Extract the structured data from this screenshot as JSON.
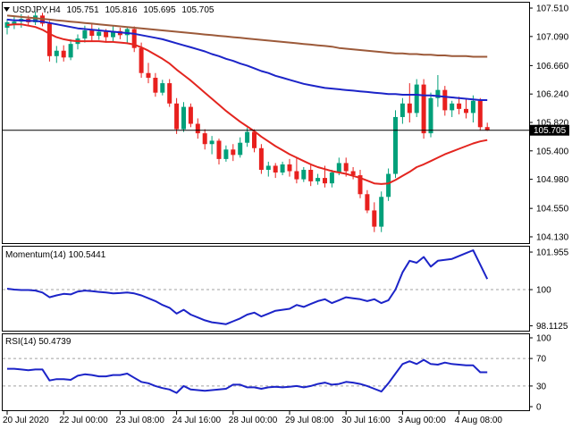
{
  "chart_data": [
    {
      "type": "candlestick",
      "header": {
        "symbol": "USDJPY,H4",
        "open": "105.751",
        "high": "105.816",
        "low": "105.695",
        "close": "105.705"
      },
      "current_price_label": "105.705",
      "y_ticks": [
        "107.510",
        "107.090",
        "106.660",
        "106.240",
        "105.820",
        "105.400",
        "104.980",
        "104.550",
        "104.130"
      ],
      "ylim": [
        104.09,
        107.55
      ],
      "current_price": 105.705,
      "colors": {
        "bull": "#00a07a",
        "bear": "#e8201e",
        "ma_fast": "#e3251f",
        "ma_mid": "#1c24c8",
        "ma_slow": "#9c5a3a"
      },
      "candles": [
        {
          "o": 107.22,
          "h": 107.35,
          "l": 107.12,
          "c": 107.3
        },
        {
          "o": 107.28,
          "h": 107.38,
          "l": 107.2,
          "c": 107.31
        },
        {
          "o": 107.31,
          "h": 107.42,
          "l": 107.22,
          "c": 107.35
        },
        {
          "o": 107.35,
          "h": 107.4,
          "l": 107.24,
          "c": 107.3
        },
        {
          "o": 107.3,
          "h": 107.46,
          "l": 107.26,
          "c": 107.4
        },
        {
          "o": 107.4,
          "h": 107.44,
          "l": 107.24,
          "c": 107.28
        },
        {
          "o": 107.28,
          "h": 107.32,
          "l": 106.72,
          "c": 106.8
        },
        {
          "o": 106.8,
          "h": 106.95,
          "l": 106.7,
          "c": 106.88
        },
        {
          "o": 106.88,
          "h": 106.96,
          "l": 106.72,
          "c": 106.78
        },
        {
          "o": 106.78,
          "h": 107.05,
          "l": 106.74,
          "c": 106.98
        },
        {
          "o": 106.98,
          "h": 107.12,
          "l": 106.9,
          "c": 107.06
        },
        {
          "o": 107.06,
          "h": 107.25,
          "l": 107.0,
          "c": 107.18
        },
        {
          "o": 107.18,
          "h": 107.28,
          "l": 107.02,
          "c": 107.1
        },
        {
          "o": 107.1,
          "h": 107.22,
          "l": 107.04,
          "c": 107.16
        },
        {
          "o": 107.16,
          "h": 107.2,
          "l": 107.0,
          "c": 107.08
        },
        {
          "o": 107.08,
          "h": 107.24,
          "l": 107.02,
          "c": 107.17
        },
        {
          "o": 107.17,
          "h": 107.22,
          "l": 107.05,
          "c": 107.11
        },
        {
          "o": 107.11,
          "h": 107.22,
          "l": 106.98,
          "c": 107.2
        },
        {
          "o": 107.2,
          "h": 107.24,
          "l": 106.86,
          "c": 106.92
        },
        {
          "o": 106.92,
          "h": 107.0,
          "l": 106.48,
          "c": 106.55
        },
        {
          "o": 106.55,
          "h": 106.7,
          "l": 106.4,
          "c": 106.48
        },
        {
          "o": 106.48,
          "h": 106.55,
          "l": 106.2,
          "c": 106.26
        },
        {
          "o": 106.26,
          "h": 106.45,
          "l": 106.22,
          "c": 106.4
        },
        {
          "o": 106.4,
          "h": 106.46,
          "l": 106.05,
          "c": 106.1
        },
        {
          "o": 106.1,
          "h": 106.18,
          "l": 105.65,
          "c": 105.72
        },
        {
          "o": 105.72,
          "h": 106.12,
          "l": 105.68,
          "c": 106.05
        },
        {
          "o": 106.05,
          "h": 106.1,
          "l": 105.75,
          "c": 105.8
        },
        {
          "o": 105.8,
          "h": 105.88,
          "l": 105.58,
          "c": 105.66
        },
        {
          "o": 105.66,
          "h": 105.72,
          "l": 105.42,
          "c": 105.5
        },
        {
          "o": 105.5,
          "h": 105.62,
          "l": 105.35,
          "c": 105.55
        },
        {
          "o": 105.55,
          "h": 105.58,
          "l": 105.2,
          "c": 105.28
        },
        {
          "o": 105.28,
          "h": 105.48,
          "l": 105.24,
          "c": 105.42
        },
        {
          "o": 105.42,
          "h": 105.5,
          "l": 105.25,
          "c": 105.34
        },
        {
          "o": 105.34,
          "h": 105.6,
          "l": 105.3,
          "c": 105.52
        },
        {
          "o": 105.52,
          "h": 105.74,
          "l": 105.46,
          "c": 105.68
        },
        {
          "o": 105.68,
          "h": 105.72,
          "l": 105.38,
          "c": 105.44
        },
        {
          "o": 105.44,
          "h": 105.5,
          "l": 105.06,
          "c": 105.12
        },
        {
          "o": 105.12,
          "h": 105.24,
          "l": 105.02,
          "c": 105.18
        },
        {
          "o": 105.18,
          "h": 105.22,
          "l": 105.0,
          "c": 105.08
        },
        {
          "o": 105.08,
          "h": 105.24,
          "l": 105.04,
          "c": 105.2
        },
        {
          "o": 105.2,
          "h": 105.28,
          "l": 105.02,
          "c": 105.1
        },
        {
          "o": 105.1,
          "h": 105.3,
          "l": 104.92,
          "c": 104.98
        },
        {
          "o": 104.98,
          "h": 105.16,
          "l": 104.94,
          "c": 105.12
        },
        {
          "o": 105.12,
          "h": 105.2,
          "l": 104.88,
          "c": 104.95
        },
        {
          "o": 104.95,
          "h": 105.06,
          "l": 104.9,
          "c": 105.0
        },
        {
          "o": 105.0,
          "h": 105.18,
          "l": 104.86,
          "c": 104.92
        },
        {
          "o": 104.92,
          "h": 105.12,
          "l": 104.86,
          "c": 105.08
        },
        {
          "o": 105.08,
          "h": 105.3,
          "l": 105.04,
          "c": 105.22
        },
        {
          "o": 105.22,
          "h": 105.3,
          "l": 105.02,
          "c": 105.1
        },
        {
          "o": 105.1,
          "h": 105.16,
          "l": 104.98,
          "c": 105.04
        },
        {
          "o": 105.04,
          "h": 105.12,
          "l": 104.7,
          "c": 104.76
        },
        {
          "o": 104.76,
          "h": 104.82,
          "l": 104.48,
          "c": 104.52
        },
        {
          "o": 104.52,
          "h": 104.64,
          "l": 104.2,
          "c": 104.28
        },
        {
          "o": 104.28,
          "h": 104.8,
          "l": 104.2,
          "c": 104.72
        },
        {
          "o": 104.72,
          "h": 105.14,
          "l": 104.66,
          "c": 105.06
        },
        {
          "o": 105.06,
          "h": 106.0,
          "l": 105.0,
          "c": 105.9
        },
        {
          "o": 105.9,
          "h": 106.18,
          "l": 105.8,
          "c": 106.1
        },
        {
          "o": 106.1,
          "h": 106.4,
          "l": 105.82,
          "c": 105.96
        },
        {
          "o": 105.96,
          "h": 106.46,
          "l": 105.9,
          "c": 106.38
        },
        {
          "o": 106.38,
          "h": 106.46,
          "l": 105.58,
          "c": 105.66
        },
        {
          "o": 105.66,
          "h": 106.26,
          "l": 105.6,
          "c": 106.18
        },
        {
          "o": 106.18,
          "h": 106.52,
          "l": 106.05,
          "c": 106.3
        },
        {
          "o": 106.3,
          "h": 106.36,
          "l": 105.92,
          "c": 106.0
        },
        {
          "o": 106.0,
          "h": 106.14,
          "l": 105.9,
          "c": 106.1
        },
        {
          "o": 106.1,
          "h": 106.2,
          "l": 105.94,
          "c": 106.02
        },
        {
          "o": 106.02,
          "h": 106.16,
          "l": 105.88,
          "c": 105.96
        },
        {
          "o": 105.96,
          "h": 106.22,
          "l": 105.82,
          "c": 106.14
        },
        {
          "o": 106.14,
          "h": 106.18,
          "l": 105.7,
          "c": 105.75
        },
        {
          "o": 105.751,
          "h": 105.816,
          "l": 105.695,
          "c": 105.705
        }
      ],
      "ma_fast": [
        107.26,
        107.27,
        107.27,
        107.25,
        107.23,
        107.19,
        107.13,
        107.08,
        107.05,
        107.03,
        107.02,
        107.02,
        107.02,
        107.02,
        107.01,
        107.01,
        107.0,
        106.99,
        106.97,
        106.93,
        106.88,
        106.82,
        106.76,
        106.69,
        106.6,
        106.52,
        106.44,
        106.35,
        106.26,
        106.17,
        106.08,
        105.99,
        105.91,
        105.83,
        105.76,
        105.69,
        105.61,
        105.54,
        105.47,
        105.41,
        105.35,
        105.3,
        105.25,
        105.2,
        105.16,
        105.13,
        105.1,
        105.08,
        105.06,
        105.03,
        105.0,
        104.96,
        104.92,
        104.91,
        104.92,
        104.97,
        105.03,
        105.09,
        105.16,
        105.2,
        105.25,
        105.3,
        105.35,
        105.39,
        105.43,
        105.47,
        105.51,
        105.54,
        105.56
      ],
      "ma_mid": [
        107.34,
        107.33,
        107.33,
        107.32,
        107.32,
        107.31,
        107.29,
        107.27,
        107.25,
        107.23,
        107.21,
        107.2,
        107.19,
        107.18,
        107.17,
        107.16,
        107.15,
        107.14,
        107.13,
        107.11,
        107.09,
        107.07,
        107.05,
        107.02,
        106.99,
        106.96,
        106.93,
        106.9,
        106.87,
        106.83,
        106.8,
        106.76,
        106.73,
        106.69,
        106.66,
        106.62,
        106.58,
        106.55,
        106.51,
        106.48,
        106.45,
        106.42,
        106.39,
        106.37,
        106.35,
        106.33,
        106.32,
        106.31,
        106.3,
        106.29,
        106.28,
        106.27,
        106.26,
        106.25,
        106.24,
        106.24,
        106.23,
        106.23,
        106.23,
        106.22,
        106.22,
        106.21,
        106.2,
        106.19,
        106.18,
        106.17,
        106.16,
        106.15,
        106.15
      ],
      "ma_slow": [
        107.4,
        107.39,
        107.38,
        107.37,
        107.36,
        107.35,
        107.34,
        107.33,
        107.32,
        107.31,
        107.3,
        107.29,
        107.28,
        107.27,
        107.26,
        107.25,
        107.24,
        107.23,
        107.22,
        107.21,
        107.2,
        107.19,
        107.18,
        107.17,
        107.16,
        107.15,
        107.14,
        107.13,
        107.12,
        107.11,
        107.1,
        107.09,
        107.08,
        107.07,
        107.06,
        107.05,
        107.04,
        107.03,
        107.02,
        107.01,
        107.0,
        106.99,
        106.98,
        106.97,
        106.96,
        106.95,
        106.94,
        106.92,
        106.91,
        106.9,
        106.89,
        106.88,
        106.87,
        106.86,
        106.85,
        106.84,
        106.84,
        106.83,
        106.83,
        106.82,
        106.82,
        106.81,
        106.81,
        106.8,
        106.8,
        106.8,
        106.79,
        106.79,
        106.79
      ],
      "x_ticks": [
        {
          "label": "20 Jul 2020",
          "index": 0
        },
        {
          "label": "22 Jul 00:00",
          "index": 8
        },
        {
          "label": "23 Jul 08:00",
          "index": 16
        },
        {
          "label": "24 Jul 16:00",
          "index": 24
        },
        {
          "label": "28 Jul 00:00",
          "index": 32
        },
        {
          "label": "29 Jul 08:00",
          "index": 40
        },
        {
          "label": "30 Jul 16:00",
          "index": 48
        },
        {
          "label": "3 Aug 00:00",
          "index": 56
        },
        {
          "label": "4 Aug 08:00",
          "index": 64
        }
      ]
    },
    {
      "type": "line",
      "title": "Momentum(14) 100.5441",
      "y_ticks": [
        "101.955",
        "100",
        "98.1125"
      ],
      "ylim": [
        98.0,
        102.05
      ],
      "reference": 100,
      "color": "#1c24c8",
      "values": [
        100.05,
        100.0,
        99.98,
        99.98,
        99.95,
        99.85,
        99.6,
        99.7,
        99.78,
        99.75,
        99.9,
        99.95,
        99.92,
        99.88,
        99.85,
        99.8,
        99.82,
        99.85,
        99.8,
        99.7,
        99.55,
        99.4,
        99.2,
        99.05,
        98.75,
        98.95,
        98.7,
        98.55,
        98.4,
        98.3,
        98.25,
        98.2,
        98.35,
        98.5,
        98.7,
        98.8,
        98.6,
        98.75,
        98.9,
        98.95,
        99.0,
        99.2,
        99.1,
        99.25,
        99.4,
        99.5,
        99.3,
        99.45,
        99.6,
        99.55,
        99.5,
        99.4,
        99.5,
        99.3,
        99.45,
        100.0,
        100.9,
        101.5,
        101.4,
        101.7,
        101.2,
        101.5,
        101.55,
        101.6,
        101.75,
        101.9,
        102.05,
        101.3,
        100.55
      ]
    },
    {
      "type": "line",
      "title": "RSI(14) 50.4739",
      "y_ticks": [
        "100",
        "70",
        "30",
        "0"
      ],
      "ylim": [
        0,
        100
      ],
      "levels": [
        70,
        30
      ],
      "color": "#1c24c8",
      "values": [
        55,
        55,
        54,
        53,
        54,
        54,
        38,
        40,
        40,
        39,
        45,
        47,
        46,
        44,
        44,
        46,
        46,
        48,
        42,
        36,
        34,
        30,
        27,
        25,
        20,
        30,
        25,
        24,
        23,
        24,
        25,
        26,
        32,
        32,
        28,
        28,
        26,
        28,
        29,
        28,
        29,
        30,
        28,
        30,
        33,
        35,
        32,
        33,
        36,
        35,
        33,
        30,
        26,
        22,
        34,
        48,
        62,
        66,
        62,
        68,
        62,
        61,
        64,
        62,
        61,
        60,
        60,
        50,
        50
      ]
    }
  ]
}
